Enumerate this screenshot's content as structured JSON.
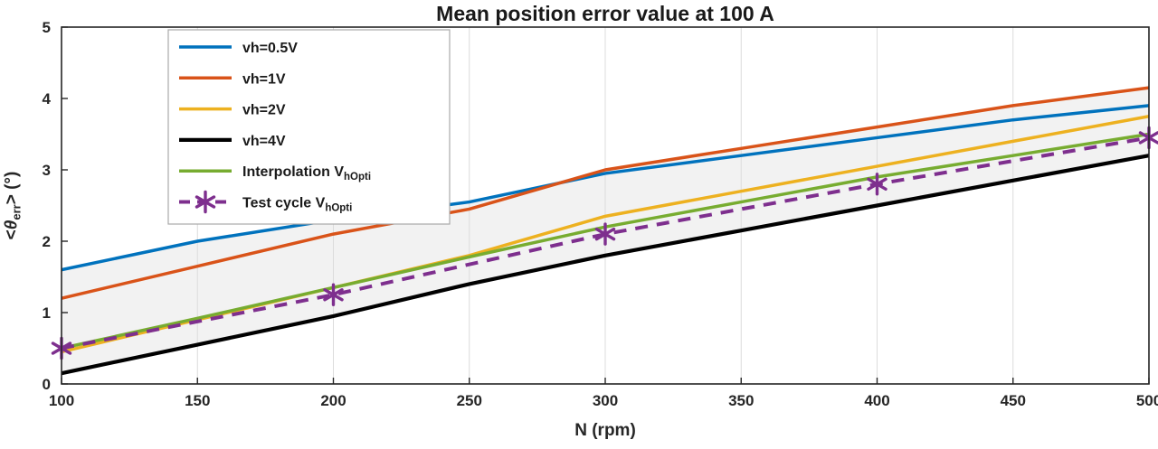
{
  "chart": {
    "title": "Mean position error value at 100 A",
    "xlabel": "N (rpm)",
    "ylabel": {
      "pre": "<",
      "theta": "θ",
      "sub": "err",
      "post": "> (°)"
    }
  },
  "chart_data": {
    "type": "line",
    "title": "Mean position error value at 100 A",
    "xlabel": "N (rpm)",
    "ylabel": "<θ_err> (°)",
    "xlim": [
      100,
      500
    ],
    "ylim": [
      0,
      5
    ],
    "xticks": [
      100,
      150,
      200,
      250,
      300,
      350,
      400,
      450,
      500
    ],
    "yticks": [
      0,
      1,
      2,
      3,
      4,
      5
    ],
    "grid": "vertical-only",
    "band_color": "#f2f2f2",
    "axis_color": "#262626",
    "grid_color": "#dcdcdc",
    "legend_position": "top-left",
    "x": [
      100,
      150,
      200,
      250,
      300,
      350,
      400,
      450,
      500
    ],
    "series": [
      {
        "name": "vh=0.5V",
        "label_main": "vh=0.5V",
        "label_sub": "",
        "color": "#0072BD",
        "style": "solid",
        "width": 3.5,
        "in_band": true,
        "values": [
          1.6,
          2.0,
          2.3,
          2.55,
          2.95,
          3.2,
          3.45,
          3.7,
          3.9
        ]
      },
      {
        "name": "vh=1V",
        "label_main": "vh=1V",
        "label_sub": "",
        "color": "#D95319",
        "style": "solid",
        "width": 3.5,
        "in_band": true,
        "values": [
          1.2,
          1.65,
          2.1,
          2.45,
          3.0,
          3.3,
          3.6,
          3.9,
          4.15
        ]
      },
      {
        "name": "vh=2V",
        "label_main": "vh=2V",
        "label_sub": "",
        "color": "#EDB120",
        "style": "solid",
        "width": 3.5,
        "in_band": true,
        "values": [
          0.45,
          0.9,
          1.35,
          1.8,
          2.35,
          2.7,
          3.05,
          3.4,
          3.75
        ]
      },
      {
        "name": "vh=4V",
        "label_main": "vh=4V",
        "label_sub": "",
        "color": "#000000",
        "style": "solid",
        "width": 4.2,
        "in_band": true,
        "values": [
          0.15,
          0.55,
          0.95,
          1.4,
          1.8,
          2.15,
          2.5,
          2.85,
          3.2
        ]
      },
      {
        "name": "Interpolation VhOpti",
        "label_main": "Interpolation V",
        "label_sub": "hOpti",
        "color": "#77AC30",
        "style": "solid",
        "width": 3.5,
        "in_band": true,
        "values": [
          0.5,
          0.92,
          1.35,
          1.78,
          2.2,
          2.55,
          2.9,
          3.2,
          3.5
        ]
      },
      {
        "name": "Test cycle VhOpti",
        "label_main": "Test cycle V",
        "label_sub": "hOpti",
        "color": "#7E2F8E",
        "style": "dashed",
        "width": 4,
        "marker": "asterisk",
        "in_band": false,
        "x": [
          100,
          200,
          300,
          400,
          500
        ],
        "values": [
          0.5,
          1.25,
          2.1,
          2.8,
          3.45
        ]
      }
    ]
  }
}
